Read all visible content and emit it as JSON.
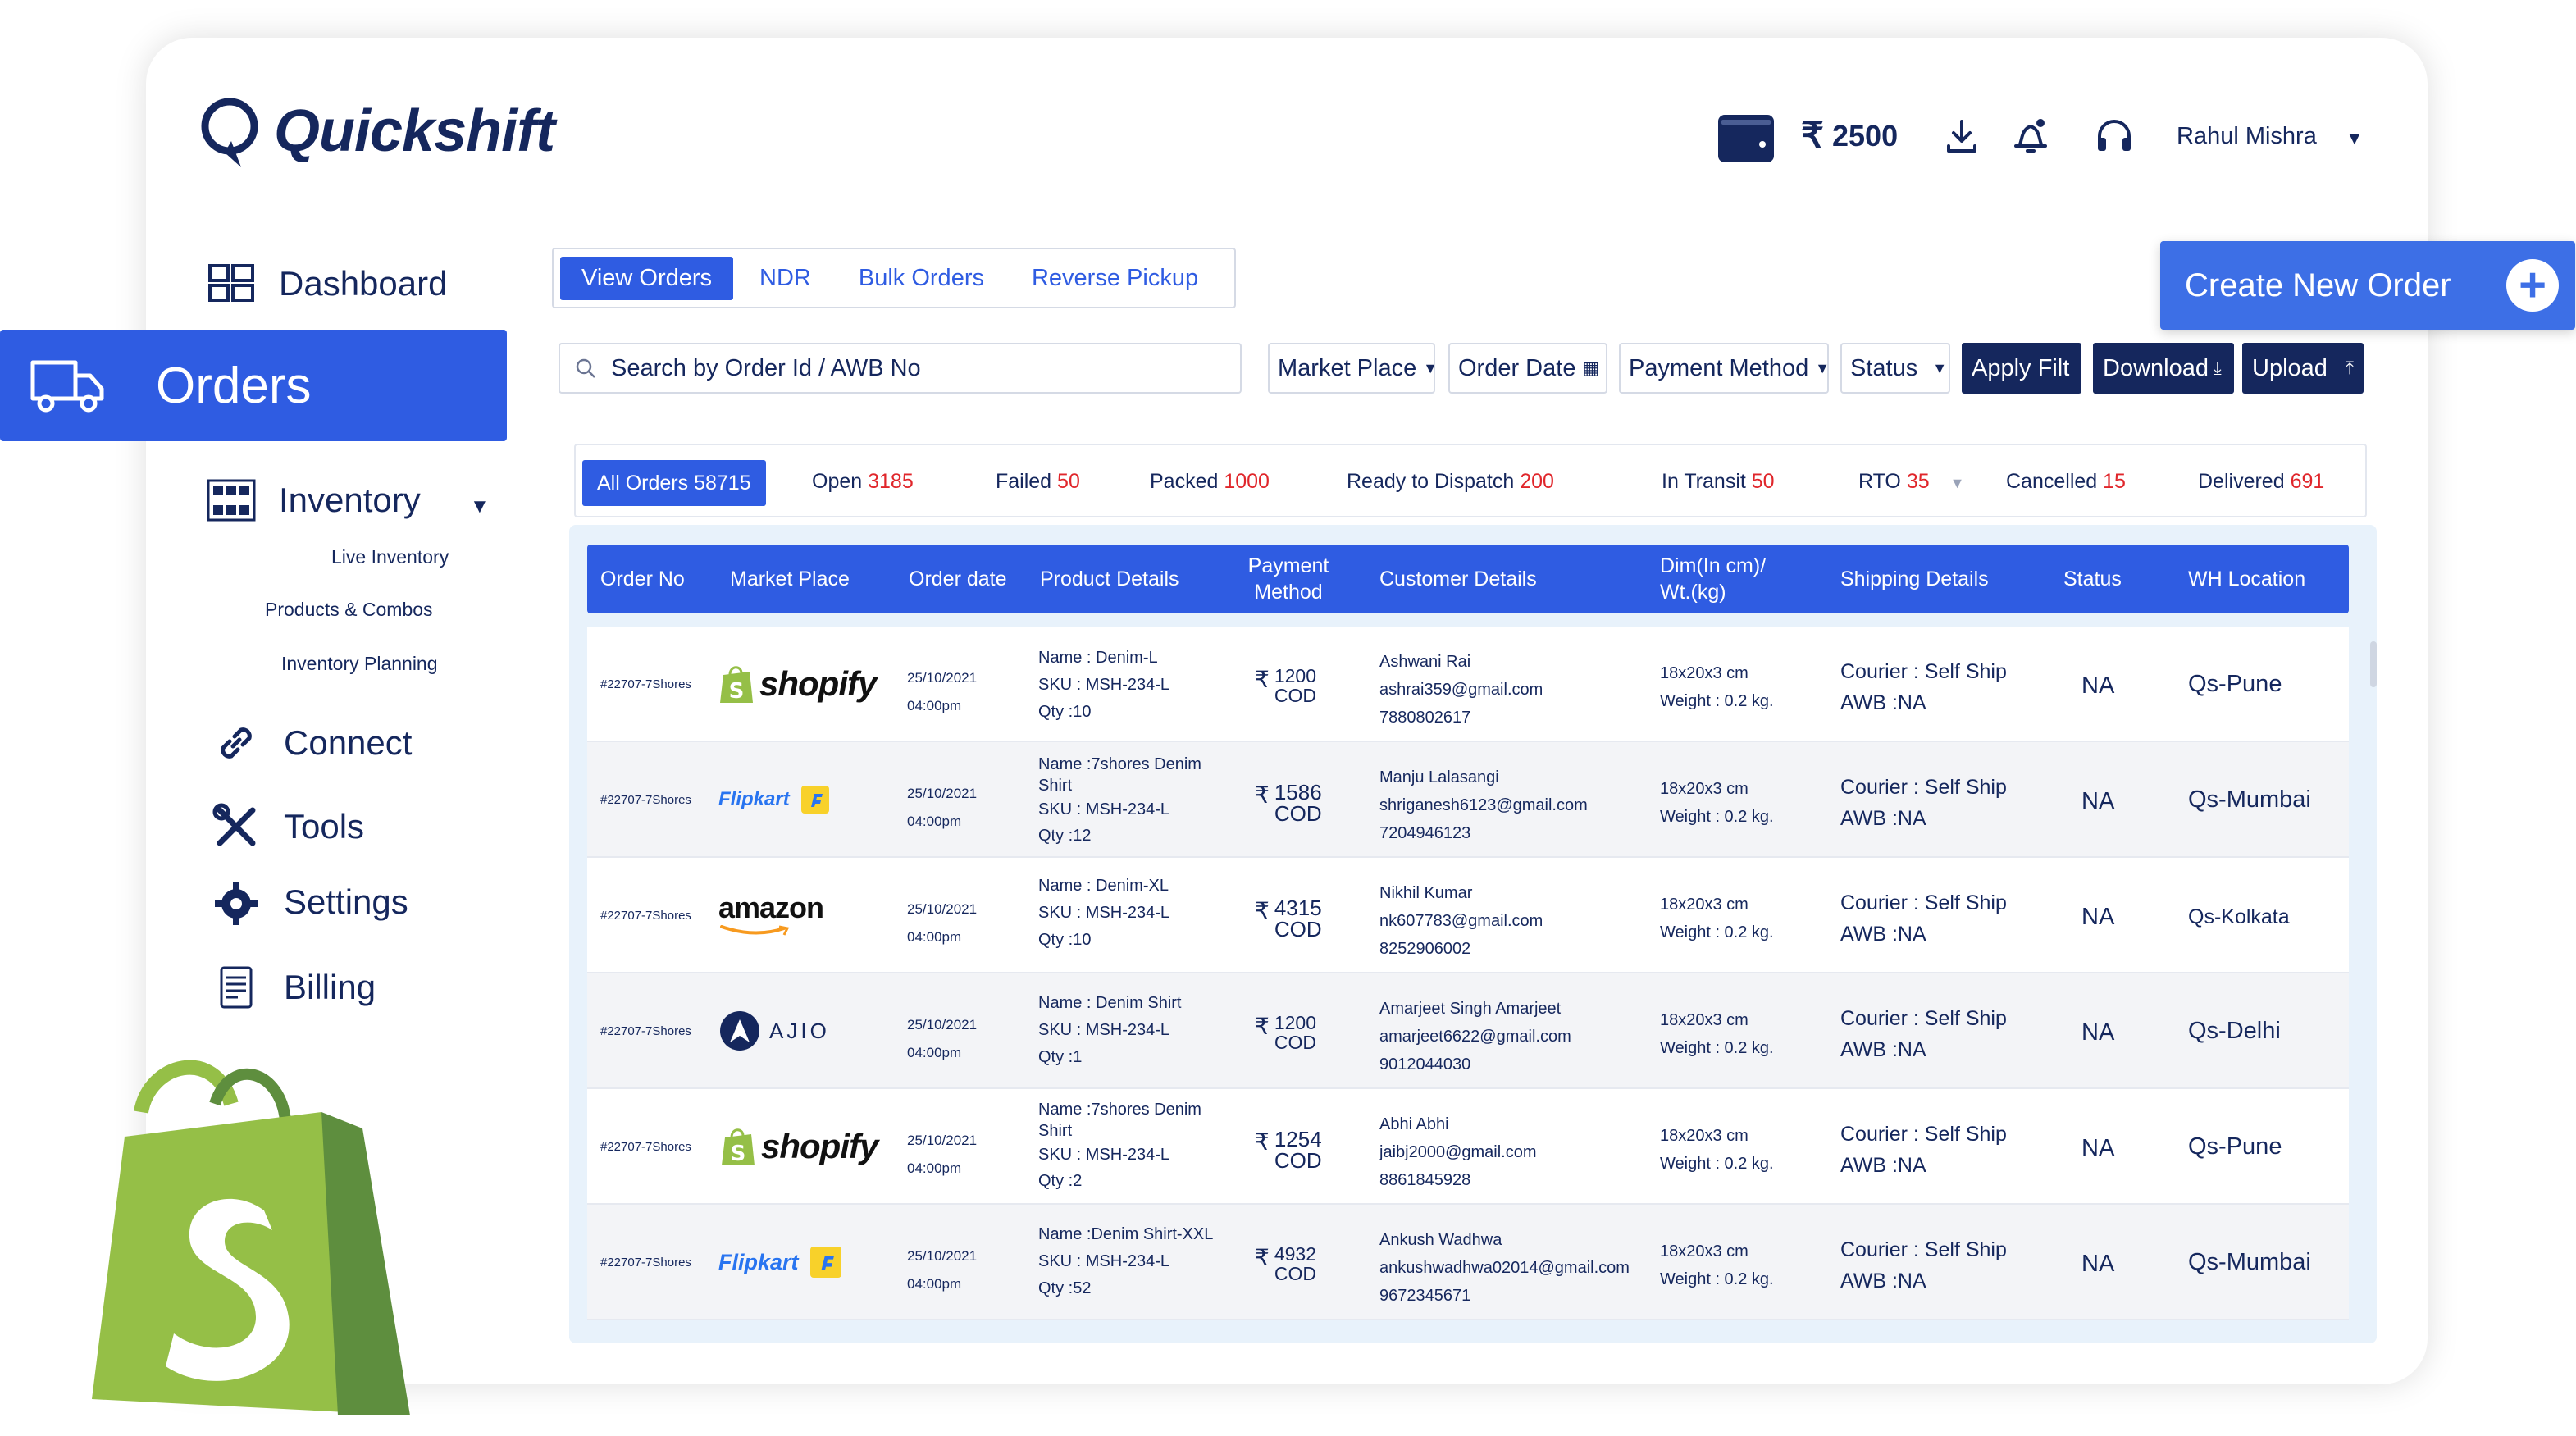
{
  "app": {
    "brand": "Quickshift"
  },
  "topbar": {
    "currency_symbol": "₹",
    "balance": "2500",
    "user_name": "Rahul Mishra"
  },
  "sidebar": {
    "dashboard": "Dashboard",
    "orders": "Orders",
    "inventory": "Inventory",
    "inventory_sub": [
      "Live Inventory",
      "Products & Combos",
      "Inventory Planning"
    ],
    "connect": "Connect",
    "tools": "Tools",
    "settings": "Settings",
    "billing": "Billing"
  },
  "tabs": [
    "View Orders",
    "NDR",
    "Bulk Orders",
    "Reverse Pickup"
  ],
  "create_order": "Create New Order",
  "filters": {
    "search_placeholder": "Search by Order Id / AWB No",
    "market_place": "Market Place",
    "order_date": "Order Date",
    "payment_method": "Payment Method",
    "status": "Status",
    "apply": "Apply Filt",
    "download": "Download",
    "upload": "Upload"
  },
  "status_counts": [
    {
      "label": "All Orders",
      "count": "58715"
    },
    {
      "label": "Open",
      "count": "3185"
    },
    {
      "label": "Failed",
      "count": "50"
    },
    {
      "label": "Packed",
      "count": "1000"
    },
    {
      "label": "Ready to Dispatch",
      "count": "200"
    },
    {
      "label": "In Transit",
      "count": "50"
    },
    {
      "label": "RTO",
      "count": "35"
    },
    {
      "label": "Cancelled",
      "count": "15"
    },
    {
      "label": "Delivered",
      "count": "691"
    }
  ],
  "table": {
    "headers": [
      "Order No",
      "Market Place",
      "Order date",
      "Product Details",
      "Payment Method",
      "Customer Details",
      "Dim(In cm)/ Wt.(kg)",
      "Shipping Details",
      "Status",
      "WH Location"
    ],
    "rows": [
      {
        "order_no": "#22707-7Shores",
        "market": "shopify",
        "date": "25/10/2021",
        "time": "04:00pm",
        "name": "Name : Denim-L",
        "sku": "SKU   : MSH-234-L",
        "qty": "Qty   :10",
        "amount": "1200",
        "method": "COD",
        "cust_name": "Ashwani Rai",
        "email": "ashrai359@gmail.com",
        "phone": "7880802617",
        "dim": "18x20x3 cm",
        "weight": "Weight : 0.2 kg.",
        "courier": "Courier : Self Ship",
        "awb": "AWB  :NA",
        "status": "NA",
        "wh": "Qs-Pune"
      },
      {
        "order_no": "#22707-7Shores",
        "market": "Flipkart",
        "date": "25/10/2021",
        "time": "04:00pm",
        "name": "Name :7shores Denim Shirt",
        "sku": "SKU   : MSH-234-L",
        "qty": "Qty   :12",
        "amount": "1586",
        "method": "COD",
        "cust_name": "Manju Lalasangi",
        "email": "shriganesh6123@gmail.com",
        "phone": "7204946123",
        "dim": "18x20x3 cm",
        "weight": "Weight : 0.2 kg.",
        "courier": "Courier : Self Ship",
        "awb": "AWB  :NA",
        "status": "NA",
        "wh": "Qs-Mumbai"
      },
      {
        "order_no": "#22707-7Shores",
        "market": "amazon",
        "date": "25/10/2021",
        "time": "04:00pm",
        "name": "Name : Denim-XL",
        "sku": "SKU   : MSH-234-L",
        "qty": "Qty   :10",
        "amount": "4315",
        "method": "COD",
        "cust_name": "Nikhil Kumar",
        "email": "nk607783@gmail.com",
        "phone": "8252906002",
        "dim": "18x20x3 cm",
        "weight": "Weight : 0.2 kg.",
        "courier": "Courier : Self Ship",
        "awb": "AWB  :NA",
        "status": "NA",
        "wh": "Qs-Kolkata"
      },
      {
        "order_no": "#22707-7Shores",
        "market": "AJIO",
        "date": "25/10/2021",
        "time": "04:00pm",
        "name": "Name : Denim Shirt",
        "sku": "SKU   : MSH-234-L",
        "qty": "Qty   :1",
        "amount": "1200",
        "method": "COD",
        "cust_name": "Amarjeet Singh Amarjeet",
        "email": "amarjeet6622@gmail.com",
        "phone": "9012044030",
        "dim": "18x20x3 cm",
        "weight": "Weight : 0.2 kg.",
        "courier": "Courier : Self Ship",
        "awb": "AWB  :NA",
        "status": "NA",
        "wh": "Qs-Delhi"
      },
      {
        "order_no": "#22707-7Shores",
        "market": "shopify",
        "date": "25/10/2021",
        "time": "04:00pm",
        "name": "Name :7shores Denim Shirt",
        "sku": "SKU   : MSH-234-L",
        "qty": "Qty   :2",
        "amount": "1254",
        "method": "COD",
        "cust_name": "Abhi Abhi",
        "email": "jaibj2000@gmail.com",
        "phone": "8861845928",
        "dim": "18x20x3 cm",
        "weight": "Weight : 0.2 kg.",
        "courier": "Courier : Self Ship",
        "awb": "AWB  :NA",
        "status": "NA",
        "wh": "Qs-Pune"
      },
      {
        "order_no": "#22707-7Shores",
        "market": "Flipkart",
        "date": "25/10/2021",
        "time": "04:00pm",
        "name": "Name :Denim Shirt-XXL",
        "sku": "SKU   : MSH-234-L",
        "qty": "Qty   :52",
        "amount": "4932",
        "method": "COD",
        "cust_name": "Ankush Wadhwa",
        "email": "ankushwadhwa02014@gmail.com",
        "phone": "9672345671",
        "dim": "18x20x3 cm",
        "weight": "Weight : 0.2 kg.",
        "courier": "Courier : Self Ship",
        "awb": "AWB  :NA",
        "status": "NA",
        "wh": "Qs-Mumbai"
      }
    ]
  },
  "colors": {
    "primary": "#2f5ce2",
    "navy": "#15275d",
    "count_red": "#e0262b",
    "shopify_green": "#95bf47"
  },
  "icons": [
    "quickshift-logo-icon",
    "wallet-icon",
    "rupee-icon",
    "download-icon",
    "bell-icon",
    "headphones-icon",
    "dashboard-icon",
    "truck-icon",
    "inventory-icon",
    "link-icon",
    "tools-icon",
    "gear-icon",
    "billing-icon",
    "search-icon",
    "calendar-icon",
    "plus-icon",
    "shopify-bag-icon"
  ]
}
